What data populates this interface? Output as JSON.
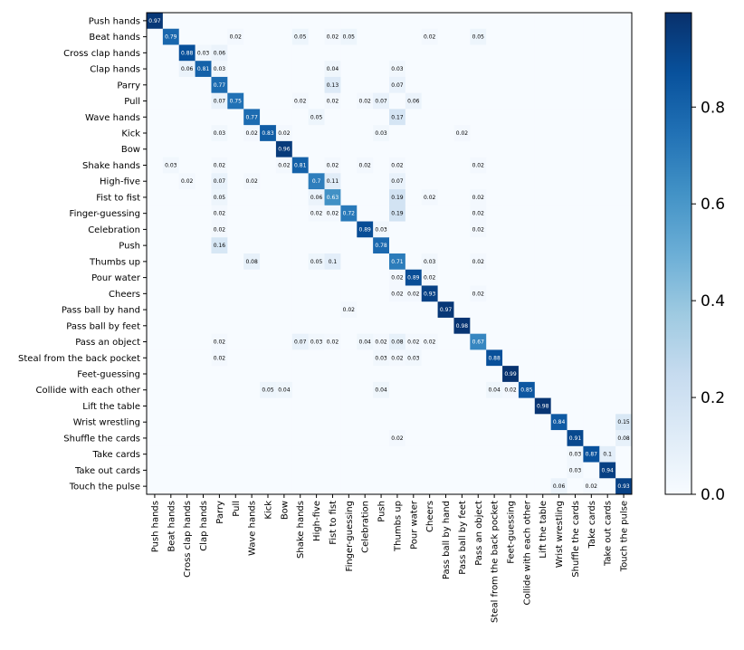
{
  "chart_data": {
    "type": "heatmap",
    "title": "",
    "xlabel": "",
    "ylabel": "",
    "labels": [
      "Push hands",
      "Beat hands",
      "Cross clap hands",
      "Clap hands",
      "Parry",
      "Pull",
      "Wave hands",
      "Kick",
      "Bow",
      "Shake hands",
      "High-five",
      "Fist to fist",
      "Finger-guessing",
      "Celebration",
      "Push",
      "Thumbs up",
      "Pour water",
      "Cheers",
      "Pass ball by hand",
      "Pass ball by feet",
      "Pass an object",
      "Steal from the back pocket",
      "Feet-guessing",
      "Collide with each other",
      "Lift the table",
      "Wrist wrestling",
      "Shuffle the cards",
      "Take cards",
      "Take out cards",
      "Touch the pulse"
    ],
    "diagonal": [
      0.97,
      0.79,
      0.88,
      0.81,
      0.77,
      0.75,
      0.77,
      0.83,
      0.96,
      0.81,
      0.7,
      0.63,
      0.72,
      0.89,
      0.78,
      0.71,
      0.89,
      0.93,
      0.97,
      0.98,
      0.67,
      0.88,
      0.99,
      0.85,
      0.98,
      0.84,
      0.91,
      0.87,
      0.94,
      0.93
    ],
    "off_diagonal": [
      [
        1,
        5,
        0.02
      ],
      [
        1,
        9,
        0.05
      ],
      [
        1,
        11,
        0.02
      ],
      [
        1,
        12,
        0.05
      ],
      [
        1,
        17,
        0.02
      ],
      [
        1,
        20,
        0.05
      ],
      [
        2,
        3,
        0.03
      ],
      [
        2,
        4,
        0.06
      ],
      [
        3,
        2,
        0.06
      ],
      [
        3,
        4,
        0.03
      ],
      [
        3,
        11,
        0.04
      ],
      [
        3,
        15,
        0.03
      ],
      [
        4,
        11,
        0.13
      ],
      [
        4,
        15,
        0.07
      ],
      [
        5,
        4,
        0.07
      ],
      [
        5,
        9,
        0.02
      ],
      [
        5,
        11,
        0.02
      ],
      [
        5,
        13,
        0.02
      ],
      [
        5,
        14,
        0.07
      ],
      [
        5,
        16,
        0.06
      ],
      [
        6,
        10,
        0.05
      ],
      [
        6,
        15,
        0.17
      ],
      [
        7,
        4,
        0.03
      ],
      [
        7,
        6,
        0.02
      ],
      [
        7,
        8,
        0.02
      ],
      [
        7,
        14,
        0.03
      ],
      [
        7,
        19,
        0.02
      ],
      [
        9,
        1,
        0.03
      ],
      [
        9,
        4,
        0.02
      ],
      [
        9,
        8,
        0.02
      ],
      [
        9,
        11,
        0.02
      ],
      [
        9,
        13,
        0.02
      ],
      [
        9,
        15,
        0.02
      ],
      [
        9,
        20,
        0.02
      ],
      [
        10,
        2,
        0.02
      ],
      [
        10,
        4,
        0.07
      ],
      [
        10,
        6,
        0.02
      ],
      [
        10,
        11,
        0.11
      ],
      [
        10,
        15,
        0.07
      ],
      [
        11,
        4,
        0.05
      ],
      [
        11,
        10,
        0.06
      ],
      [
        11,
        15,
        0.19
      ],
      [
        11,
        17,
        0.02
      ],
      [
        11,
        20,
        0.02
      ],
      [
        12,
        4,
        0.02
      ],
      [
        12,
        10,
        0.02
      ],
      [
        12,
        11,
        0.02
      ],
      [
        12,
        15,
        0.19
      ],
      [
        12,
        20,
        0.02
      ],
      [
        13,
        4,
        0.02
      ],
      [
        13,
        14,
        0.03
      ],
      [
        13,
        20,
        0.02
      ],
      [
        14,
        4,
        0.16
      ],
      [
        15,
        6,
        0.08
      ],
      [
        15,
        10,
        0.05
      ],
      [
        15,
        11,
        0.1
      ],
      [
        15,
        17,
        0.03
      ],
      [
        15,
        20,
        0.02
      ],
      [
        16,
        15,
        0.02
      ],
      [
        16,
        17,
        0.02
      ],
      [
        17,
        15,
        0.02
      ],
      [
        17,
        16,
        0.02
      ],
      [
        17,
        20,
        0.02
      ],
      [
        18,
        12,
        0.02
      ],
      [
        20,
        4,
        0.02
      ],
      [
        20,
        9,
        0.07
      ],
      [
        20,
        10,
        0.03
      ],
      [
        20,
        11,
        0.02
      ],
      [
        20,
        13,
        0.04
      ],
      [
        20,
        14,
        0.02
      ],
      [
        20,
        15,
        0.08
      ],
      [
        20,
        16,
        0.02
      ],
      [
        20,
        17,
        0.02
      ],
      [
        21,
        4,
        0.02
      ],
      [
        21,
        14,
        0.03
      ],
      [
        21,
        15,
        0.02
      ],
      [
        21,
        16,
        0.03
      ],
      [
        23,
        7,
        0.05
      ],
      [
        23,
        8,
        0.04
      ],
      [
        23,
        14,
        0.04
      ],
      [
        23,
        21,
        0.04
      ],
      [
        23,
        22,
        0.02
      ],
      [
        25,
        29,
        0.15
      ],
      [
        26,
        15,
        0.02
      ],
      [
        26,
        29,
        0.08
      ],
      [
        27,
        26,
        0.03
      ],
      [
        27,
        28,
        0.1
      ],
      [
        28,
        26,
        0.03
      ],
      [
        29,
        25,
        0.06
      ],
      [
        29,
        27,
        0.02
      ]
    ],
    "colorbar": {
      "min": 0,
      "max": 1,
      "ticks": [
        "0.0",
        "0.2",
        "0.4",
        "0.6",
        "0.8"
      ]
    },
    "colormap": "Blues"
  }
}
